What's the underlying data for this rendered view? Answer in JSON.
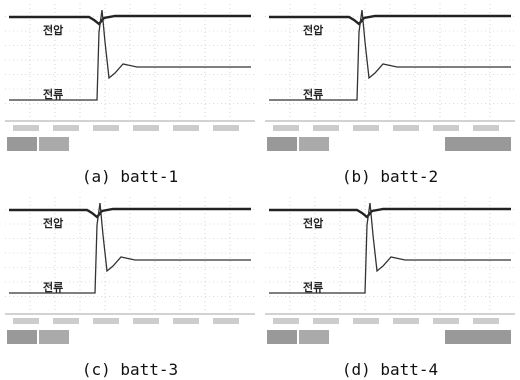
{
  "panels": [
    {
      "voltage_label": "전압",
      "current_label": "전류",
      "caption": "(a) batt-1"
    },
    {
      "voltage_label": "전압",
      "current_label": "전류",
      "caption": "(b) batt-2"
    },
    {
      "voltage_label": "전압",
      "current_label": "전류",
      "caption": "(c) batt-3"
    },
    {
      "voltage_label": "전압",
      "current_label": "전류",
      "caption": "(d) batt-4"
    }
  ]
}
